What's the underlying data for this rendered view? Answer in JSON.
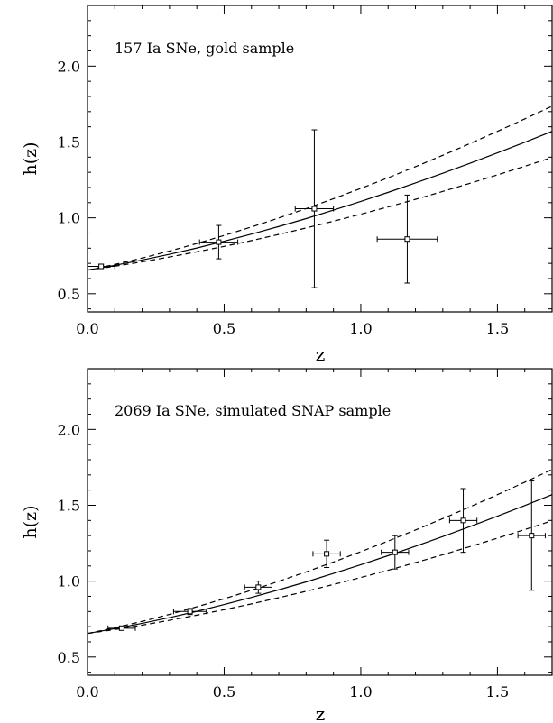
{
  "chart_data": [
    {
      "type": "scatter",
      "title": "",
      "annotation": "157 Ia SNe, gold sample",
      "xlabel": "z",
      "ylabel": "h(z)",
      "xlim": [
        0.0,
        1.7
      ],
      "ylim": [
        0.38,
        2.4
      ],
      "x_ticks": [
        "0.0",
        "0.5",
        "1.0",
        "1.5"
      ],
      "y_ticks": [
        "0.5",
        "1.0",
        "1.5",
        "2.0"
      ],
      "grid": false,
      "model_curve": {
        "style": "solid",
        "x": [
          0.0,
          0.1,
          0.2,
          0.3,
          0.4,
          0.5,
          0.6,
          0.7,
          0.8,
          0.9,
          1.0,
          1.1,
          1.2,
          1.3,
          1.4,
          1.5,
          1.6,
          1.7
        ],
        "y": [
          0.655,
          0.687,
          0.722,
          0.76,
          0.801,
          0.846,
          0.893,
          0.943,
          0.995,
          1.051,
          1.108,
          1.168,
          1.23,
          1.294,
          1.36,
          1.428,
          1.498,
          1.57
        ]
      },
      "upper_bound": {
        "style": "dashed",
        "x": [
          0.0,
          0.1,
          0.2,
          0.3,
          0.4,
          0.5,
          0.6,
          0.7,
          0.8,
          0.9,
          1.0,
          1.1,
          1.2,
          1.3,
          1.4,
          1.5,
          1.6,
          1.7
        ],
        "y": [
          0.655,
          0.693,
          0.735,
          0.781,
          0.831,
          0.884,
          0.94,
          0.999,
          1.061,
          1.126,
          1.194,
          1.264,
          1.337,
          1.412,
          1.49,
          1.57,
          1.652,
          1.736
        ]
      },
      "lower_bound": {
        "style": "dashed",
        "x": [
          0.0,
          0.1,
          0.2,
          0.3,
          0.4,
          0.5,
          0.6,
          0.7,
          0.8,
          0.9,
          1.0,
          1.1,
          1.2,
          1.3,
          1.4,
          1.5,
          1.6,
          1.7
        ],
        "y": [
          0.655,
          0.681,
          0.71,
          0.742,
          0.776,
          0.812,
          0.85,
          0.891,
          0.933,
          0.978,
          1.024,
          1.072,
          1.122,
          1.174,
          1.228,
          1.283,
          1.34,
          1.398
        ]
      },
      "points": [
        {
          "x": 0.05,
          "y": 0.68,
          "xerr": 0.05,
          "yerr": 0.015
        },
        {
          "x": 0.48,
          "y": 0.84,
          "xerr": 0.07,
          "yerr": 0.11
        },
        {
          "x": 0.83,
          "y": 1.06,
          "xerr": 0.07,
          "yerr": 0.52
        },
        {
          "x": 1.17,
          "y": 0.86,
          "xerr": 0.11,
          "yerr": 0.29
        }
      ]
    },
    {
      "type": "scatter",
      "title": "",
      "annotation": "2069 Ia SNe, simulated SNAP sample",
      "xlabel": "z",
      "ylabel": "h(z)",
      "xlim": [
        0.0,
        1.7
      ],
      "ylim": [
        0.38,
        2.4
      ],
      "x_ticks": [
        "0.0",
        "0.5",
        "1.0",
        "1.5"
      ],
      "y_ticks": [
        "0.5",
        "1.0",
        "1.5",
        "2.0"
      ],
      "grid": false,
      "model_curve": {
        "style": "solid",
        "x": [
          0.0,
          0.1,
          0.2,
          0.3,
          0.4,
          0.5,
          0.6,
          0.7,
          0.8,
          0.9,
          1.0,
          1.1,
          1.2,
          1.3,
          1.4,
          1.5,
          1.6,
          1.7
        ],
        "y": [
          0.655,
          0.687,
          0.722,
          0.76,
          0.801,
          0.846,
          0.893,
          0.943,
          0.995,
          1.051,
          1.108,
          1.168,
          1.23,
          1.294,
          1.36,
          1.428,
          1.498,
          1.57
        ]
      },
      "upper_bound": {
        "style": "dashed",
        "x": [
          0.0,
          0.1,
          0.2,
          0.3,
          0.4,
          0.5,
          0.6,
          0.7,
          0.8,
          0.9,
          1.0,
          1.1,
          1.2,
          1.3,
          1.4,
          1.5,
          1.6,
          1.7
        ],
        "y": [
          0.655,
          0.693,
          0.735,
          0.781,
          0.831,
          0.884,
          0.94,
          0.999,
          1.061,
          1.126,
          1.194,
          1.264,
          1.337,
          1.412,
          1.49,
          1.57,
          1.652,
          1.736
        ]
      },
      "lower_bound": {
        "style": "dashed",
        "x": [
          0.0,
          0.1,
          0.2,
          0.3,
          0.4,
          0.5,
          0.6,
          0.7,
          0.8,
          0.9,
          1.0,
          1.1,
          1.2,
          1.3,
          1.4,
          1.5,
          1.6,
          1.7
        ],
        "y": [
          0.655,
          0.681,
          0.71,
          0.742,
          0.776,
          0.812,
          0.85,
          0.891,
          0.933,
          0.978,
          1.024,
          1.072,
          1.122,
          1.174,
          1.228,
          1.283,
          1.34,
          1.398
        ]
      },
      "points": [
        {
          "x": 0.125,
          "y": 0.69,
          "xerr": 0.05,
          "yerr": 0.01
        },
        {
          "x": 0.375,
          "y": 0.8,
          "xerr": 0.06,
          "yerr": 0.02
        },
        {
          "x": 0.625,
          "y": 0.96,
          "xerr": 0.05,
          "yerr": 0.04
        },
        {
          "x": 0.875,
          "y": 1.18,
          "xerr": 0.05,
          "yerr": 0.09
        },
        {
          "x": 1.125,
          "y": 1.19,
          "xerr": 0.05,
          "yerr": 0.11
        },
        {
          "x": 1.375,
          "y": 1.4,
          "xerr": 0.05,
          "yerr": 0.21
        },
        {
          "x": 1.625,
          "y": 1.3,
          "xerr": 0.05,
          "yerr": 0.36
        }
      ]
    }
  ]
}
